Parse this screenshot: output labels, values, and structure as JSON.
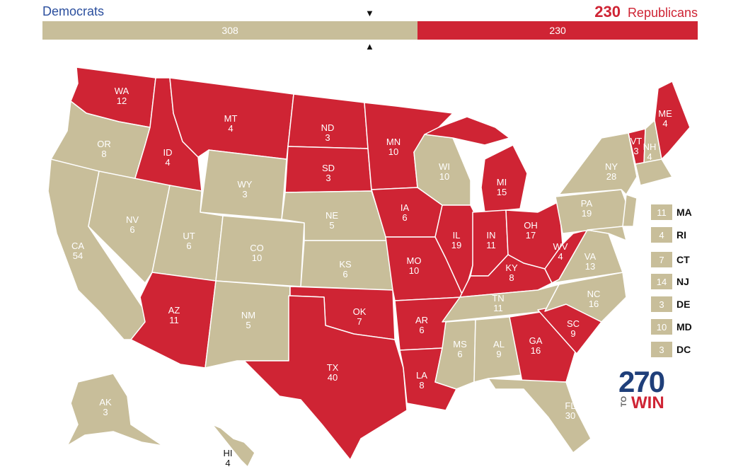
{
  "header": {
    "dem_label": "Democrats",
    "rep_label": "Republicans",
    "rep_count": "230",
    "dem_total": "308",
    "rep_total": "230",
    "dem_fraction": 0.5726
  },
  "colors": {
    "dem": "#c8be9a",
    "rep": "#cf2434"
  },
  "states": [
    {
      "abbr": "WA",
      "ev": "12",
      "party": "R"
    },
    {
      "abbr": "OR",
      "ev": "8",
      "party": "D"
    },
    {
      "abbr": "CA",
      "ev": "54",
      "party": "D"
    },
    {
      "abbr": "ID",
      "ev": "4",
      "party": "R"
    },
    {
      "abbr": "NV",
      "ev": "6",
      "party": "D"
    },
    {
      "abbr": "MT",
      "ev": "4",
      "party": "R"
    },
    {
      "abbr": "WY",
      "ev": "3",
      "party": "D"
    },
    {
      "abbr": "UT",
      "ev": "6",
      "party": "D"
    },
    {
      "abbr": "AZ",
      "ev": "11",
      "party": "R"
    },
    {
      "abbr": "CO",
      "ev": "10",
      "party": "D"
    },
    {
      "abbr": "NM",
      "ev": "5",
      "party": "D"
    },
    {
      "abbr": "ND",
      "ev": "3",
      "party": "R"
    },
    {
      "abbr": "SD",
      "ev": "3",
      "party": "R"
    },
    {
      "abbr": "NE",
      "ev": "5",
      "party": "D"
    },
    {
      "abbr": "KS",
      "ev": "6",
      "party": "D"
    },
    {
      "abbr": "OK",
      "ev": "7",
      "party": "R"
    },
    {
      "abbr": "TX",
      "ev": "40",
      "party": "R"
    },
    {
      "abbr": "MN",
      "ev": "10",
      "party": "R"
    },
    {
      "abbr": "IA",
      "ev": "6",
      "party": "R"
    },
    {
      "abbr": "MO",
      "ev": "10",
      "party": "R"
    },
    {
      "abbr": "AR",
      "ev": "6",
      "party": "R"
    },
    {
      "abbr": "LA",
      "ev": "8",
      "party": "R"
    },
    {
      "abbr": "WI",
      "ev": "10",
      "party": "D"
    },
    {
      "abbr": "IL",
      "ev": "19",
      "party": "R"
    },
    {
      "abbr": "MI",
      "ev": "15",
      "party": "R"
    },
    {
      "abbr": "IN",
      "ev": "11",
      "party": "R"
    },
    {
      "abbr": "OH",
      "ev": "17",
      "party": "R"
    },
    {
      "abbr": "KY",
      "ev": "8",
      "party": "R"
    },
    {
      "abbr": "TN",
      "ev": "11",
      "party": "D"
    },
    {
      "abbr": "MS",
      "ev": "6",
      "party": "D"
    },
    {
      "abbr": "AL",
      "ev": "9",
      "party": "D"
    },
    {
      "abbr": "GA",
      "ev": "16",
      "party": "R"
    },
    {
      "abbr": "SC",
      "ev": "9",
      "party": "R"
    },
    {
      "abbr": "NC",
      "ev": "16",
      "party": "D"
    },
    {
      "abbr": "FL",
      "ev": "30",
      "party": "D"
    },
    {
      "abbr": "WV",
      "ev": "4",
      "party": "R"
    },
    {
      "abbr": "VA",
      "ev": "13",
      "party": "D"
    },
    {
      "abbr": "PA",
      "ev": "19",
      "party": "D"
    },
    {
      "abbr": "NY",
      "ev": "28",
      "party": "D"
    },
    {
      "abbr": "VT",
      "ev": "3",
      "party": "R"
    },
    {
      "abbr": "NH",
      "ev": "4",
      "party": "D"
    },
    {
      "abbr": "ME",
      "ev": "4",
      "party": "R"
    },
    {
      "abbr": "AK",
      "ev": "3",
      "party": "D"
    },
    {
      "abbr": "HI",
      "ev": "4",
      "party": "D"
    }
  ],
  "small_states": [
    {
      "abbr": "MA",
      "ev": "11"
    },
    {
      "abbr": "RI",
      "ev": "4"
    },
    {
      "abbr": "CT",
      "ev": "7"
    },
    {
      "abbr": "NJ",
      "ev": "14"
    },
    {
      "abbr": "DE",
      "ev": "3"
    },
    {
      "abbr": "MD",
      "ev": "10"
    },
    {
      "abbr": "DC",
      "ev": "3"
    }
  ],
  "logo": {
    "number": "270",
    "to": "TO",
    "win": "WIN"
  }
}
